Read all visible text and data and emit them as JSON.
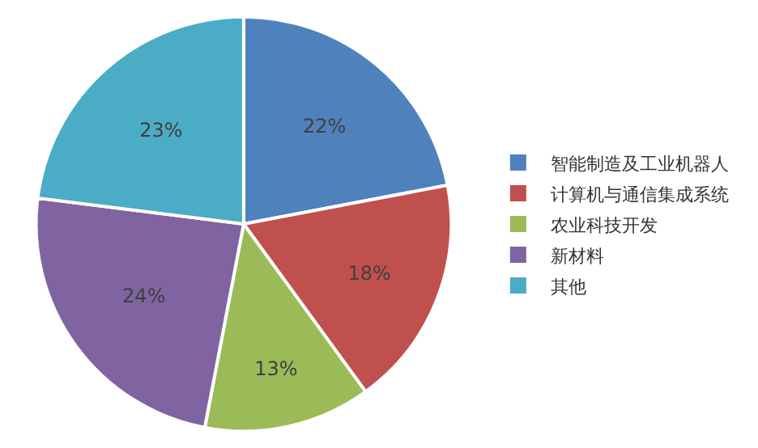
{
  "chart_data": {
    "type": "pie",
    "categories": [
      "智能制造及工业机器人",
      "计算机与通信集成系统",
      "农业科技开发",
      "新材料",
      "其他"
    ],
    "values": [
      22,
      18,
      13,
      24,
      23
    ],
    "value_labels": [
      "22%",
      "18%",
      "13%",
      "24%",
      "23%"
    ],
    "colors": [
      "#4f81bd",
      "#c0504d",
      "#9bbb59",
      "#8064a2",
      "#4bacc6"
    ],
    "legend": "right"
  }
}
